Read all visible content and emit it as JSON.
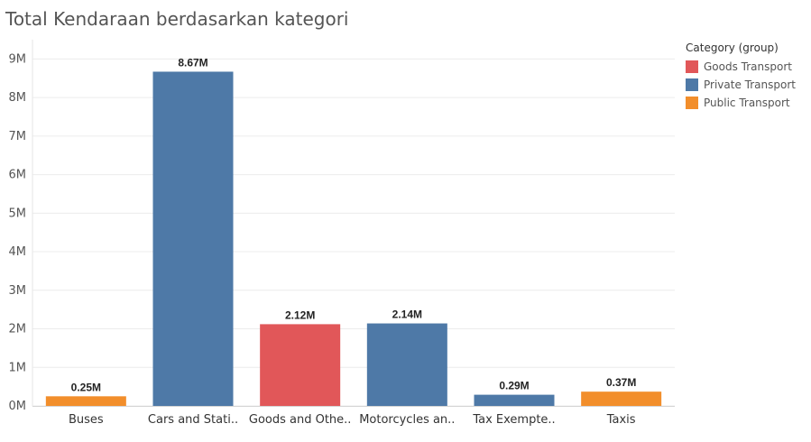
{
  "chart_data": {
    "type": "bar",
    "title": "Total Kendaraan berdasarkan kategori",
    "categories": [
      "Buses",
      "Cars and Stati..",
      "Goods and Othe..",
      "Motorcycles an..",
      "Tax Exempte..",
      "Taxis"
    ],
    "values": [
      0.25,
      8.67,
      2.12,
      2.14,
      0.29,
      0.37
    ],
    "value_unit": "M",
    "data_labels": [
      "0.25M",
      "8.67M",
      "2.12M",
      "2.14M",
      "0.29M",
      "0.37M"
    ],
    "bar_groups": [
      "Public Transport",
      "Private Transport",
      "Goods Transport",
      "Private Transport",
      "Private Transport",
      "Public Transport"
    ],
    "ylim": [
      0,
      9.5
    ],
    "yticks": [
      0,
      1,
      2,
      3,
      4,
      5,
      6,
      7,
      8,
      9
    ],
    "ytick_labels": [
      "0M",
      "1M",
      "2M",
      "3M",
      "4M",
      "5M",
      "6M",
      "7M",
      "8M",
      "9M"
    ],
    "xlabel": "",
    "ylabel": "",
    "grid": true,
    "legend": {
      "title": "Category (group)",
      "placement": "right",
      "entries": [
        {
          "name": "Goods Transport",
          "color": "#e15759"
        },
        {
          "name": "Private Transport",
          "color": "#4e79a7"
        },
        {
          "name": "Public Transport",
          "color": "#f28e2b"
        }
      ]
    }
  }
}
